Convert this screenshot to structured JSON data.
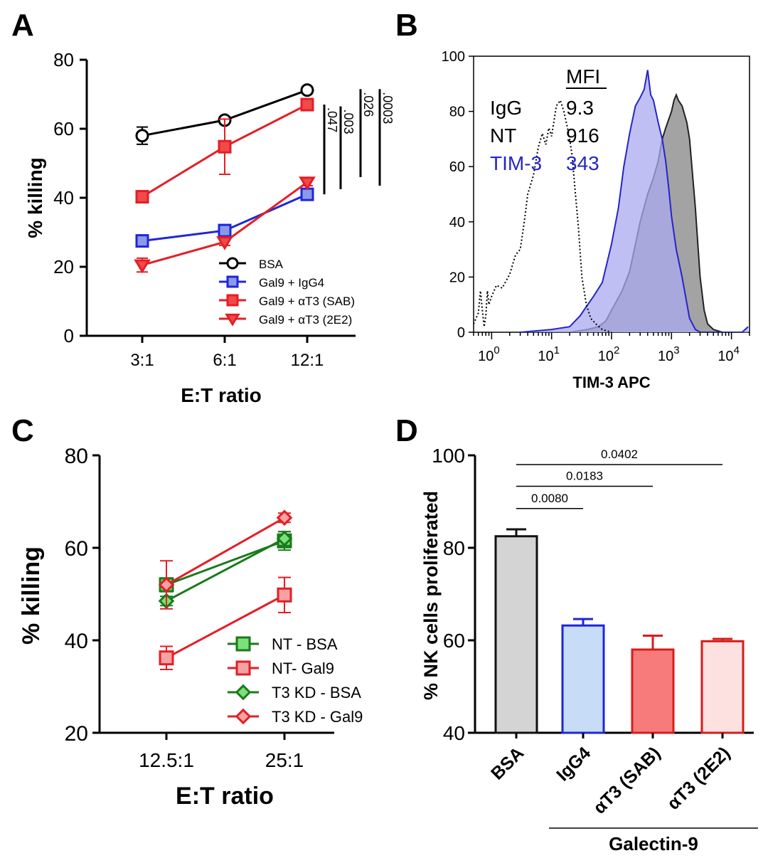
{
  "chart_data": [
    {
      "panel": "A",
      "type": "line",
      "xlabel": "E:T ratio",
      "ylabel": "% killing",
      "categories": [
        "3:1",
        "6:1",
        "12:1"
      ],
      "ylim": [
        0,
        80
      ],
      "yticks": [
        0,
        20,
        40,
        60,
        80
      ],
      "series": [
        {
          "name": "BSA",
          "values": [
            58,
            62.5,
            71.2
          ],
          "err": [
            2.5,
            1,
            1
          ],
          "marker": "circle",
          "color": "#000000",
          "fill": "#ffffff"
        },
        {
          "name": "Gal9 + IgG4",
          "values": [
            27.5,
            30.5,
            41
          ],
          "err": [
            1,
            1,
            1.5
          ],
          "marker": "square",
          "color": "#1f26d9",
          "fill": "#8a9ae8"
        },
        {
          "name": "Gal9 + αT3 (SAB)",
          "values": [
            40.3,
            54.8,
            67
          ],
          "err": [
            1,
            8,
            1
          ],
          "marker": "square",
          "color": "#e41e26",
          "fill": "#f04a4a"
        },
        {
          "name": "Gal9 + αT3 (2E2)",
          "values": [
            20.5,
            27.2,
            44.5
          ],
          "err": [
            2,
            1,
            1
          ],
          "marker": "triangle-down",
          "color": "#e41e26",
          "fill": "#f04a4a"
        }
      ],
      "pvalues": [
        {
          "label": ".047",
          "from": 41,
          "to": 67
        },
        {
          "label": ".003",
          "from": 42.5,
          "to": 66.5
        },
        {
          "label": ".026",
          "from": 46,
          "to": 71.5
        },
        {
          "label": ".0003",
          "from": 43.5,
          "to": 71.5
        }
      ]
    },
    {
      "panel": "B",
      "type": "area",
      "xlabel": "TIM-3 APC",
      "ylabel": "",
      "xscale": "log",
      "xlim": [
        0.5,
        20000
      ],
      "ylim": [
        0,
        100
      ],
      "yticks": [
        0,
        20,
        40,
        60,
        80,
        100
      ],
      "xticks": [
        {
          "exp": 0,
          "label_base": "10",
          "label_sup": "0"
        },
        {
          "exp": 1,
          "label_base": "10",
          "label_sup": "1"
        },
        {
          "exp": 2,
          "label_base": "10",
          "label_sup": "2"
        },
        {
          "exp": 3,
          "label_base": "10",
          "label_sup": "3"
        },
        {
          "exp": 4,
          "label_base": "10",
          "label_sup": "4"
        }
      ],
      "mfi_header": "MFI",
      "series": [
        {
          "name": "IgG",
          "mfi": "9.3",
          "color": "#000000",
          "style": "dotted",
          "points": [
            [
              0.5,
              3
            ],
            [
              0.6,
              7
            ],
            [
              0.65,
              15
            ],
            [
              0.7,
              8
            ],
            [
              0.75,
              2
            ],
            [
              0.8,
              6
            ],
            [
              0.85,
              15
            ],
            [
              0.9,
              10
            ],
            [
              1,
              13
            ],
            [
              1.2,
              17
            ],
            [
              1.5,
              16
            ],
            [
              2,
              21
            ],
            [
              2.5,
              28
            ],
            [
              3,
              30
            ],
            [
              3.5,
              40
            ],
            [
              4,
              50
            ],
            [
              5,
              57
            ],
            [
              6,
              67
            ],
            [
              7,
              72
            ],
            [
              8,
              68
            ],
            [
              9,
              74
            ],
            [
              10,
              71
            ],
            [
              12,
              82
            ],
            [
              14,
              84
            ],
            [
              16,
              80
            ],
            [
              18,
              75
            ],
            [
              20,
              70
            ],
            [
              22,
              64
            ],
            [
              25,
              50
            ],
            [
              28,
              38
            ],
            [
              32,
              20
            ],
            [
              38,
              10
            ],
            [
              45,
              5
            ],
            [
              55,
              3
            ],
            [
              70,
              1
            ],
            [
              100,
              0
            ]
          ]
        },
        {
          "name": "NT",
          "mfi": "916",
          "color": "#222222",
          "fill": "#9e9e9e",
          "style": "solid",
          "points": [
            [
              20,
              0
            ],
            [
              40,
              1
            ],
            [
              60,
              2
            ],
            [
              80,
              4
            ],
            [
              100,
              8
            ],
            [
              150,
              15
            ],
            [
              200,
              22
            ],
            [
              300,
              40
            ],
            [
              400,
              50
            ],
            [
              500,
              56
            ],
            [
              600,
              62
            ],
            [
              700,
              70
            ],
            [
              800,
              74
            ],
            [
              1000,
              80
            ],
            [
              1100,
              84
            ],
            [
              1200,
              86
            ],
            [
              1300,
              84
            ],
            [
              1500,
              82
            ],
            [
              1800,
              76
            ],
            [
              2000,
              70
            ],
            [
              2500,
              45
            ],
            [
              3000,
              20
            ],
            [
              3500,
              8
            ],
            [
              4000,
              3
            ],
            [
              5000,
              1
            ],
            [
              7000,
              0
            ]
          ]
        },
        {
          "name": "TIM-3",
          "mfi": "343",
          "color": "#2525c8",
          "fill": "#a9a9ef",
          "style": "solid",
          "points": [
            [
              3,
              0
            ],
            [
              10,
              1
            ],
            [
              20,
              2
            ],
            [
              30,
              6
            ],
            [
              40,
              10
            ],
            [
              50,
              13
            ],
            [
              70,
              18
            ],
            [
              100,
              32
            ],
            [
              130,
              45
            ],
            [
              160,
              60
            ],
            [
              200,
              72
            ],
            [
              250,
              82
            ],
            [
              300,
              85
            ],
            [
              350,
              88
            ],
            [
              400,
              95
            ],
            [
              450,
              86
            ],
            [
              500,
              84
            ],
            [
              600,
              76
            ],
            [
              700,
              70
            ],
            [
              800,
              62
            ],
            [
              900,
              52
            ],
            [
              1000,
              42
            ],
            [
              1200,
              30
            ],
            [
              1500,
              20
            ],
            [
              2000,
              5
            ],
            [
              2500,
              1
            ],
            [
              3000,
              0
            ],
            [
              15000,
              0
            ],
            [
              19000,
              2
            ]
          ]
        }
      ]
    },
    {
      "panel": "C",
      "type": "line",
      "xlabel": "E:T ratio",
      "ylabel": "% killing",
      "categories": [
        "12.5:1",
        "25:1"
      ],
      "ylim": [
        20,
        80
      ],
      "yticks": [
        20,
        40,
        60,
        80
      ],
      "series": [
        {
          "name": "NT - BSA",
          "values": [
            52,
            61.5
          ],
          "err": [
            1.5,
            2
          ],
          "marker": "square",
          "color": "#1a7a1a",
          "fill": "#7be07b"
        },
        {
          "name": "NT- Gal9",
          "values": [
            36.2,
            49.8
          ],
          "err": [
            2.5,
            3.8
          ],
          "marker": "square",
          "color": "#e41e26",
          "fill": "#f4a2a2"
        },
        {
          "name": "T3 KD - BSA",
          "values": [
            48.5,
            62
          ],
          "err": [
            1,
            1.5
          ],
          "marker": "diamond",
          "color": "#1a7a1a",
          "fill": "#7be07b"
        },
        {
          "name": "T3 KD - Gal9",
          "values": [
            52,
            66.5
          ],
          "err": [
            5.2,
            1
          ],
          "marker": "diamond",
          "color": "#e41e26",
          "fill": "#f4a2a2"
        }
      ]
    },
    {
      "panel": "D",
      "type": "bar",
      "xlabel": "Galectin-9",
      "ylabel": "% NK cells proliferated",
      "categories": [
        "BSA",
        "IgG4",
        "αT3 (SAB)",
        "αT3 (2E2)"
      ],
      "ylim": [
        40,
        100
      ],
      "yticks": [
        40,
        60,
        80,
        100
      ],
      "values": [
        82.5,
        63.2,
        58,
        59.8
      ],
      "err": [
        1.5,
        1.4,
        3,
        0.5
      ],
      "colors": [
        {
          "fill": "#d4d4d4",
          "stroke": "#111111"
        },
        {
          "fill": "#c6dcf7",
          "stroke": "#1f26d9"
        },
        {
          "fill": "#f77b7b",
          "stroke": "#d81c1c"
        },
        {
          "fill": "#fde1e1",
          "stroke": "#d81c1c"
        }
      ],
      "pvalues": [
        {
          "label": "0.0080",
          "from": 0,
          "to": 1,
          "y": 88.5
        },
        {
          "label": "0.0183",
          "from": 0,
          "to": 2,
          "y": 93.3
        },
        {
          "label": "0.0402",
          "from": 0,
          "to": 3,
          "y": 98
        }
      ]
    }
  ],
  "panel_letters": {
    "A": "A",
    "B": "B",
    "C": "C",
    "D": "D"
  }
}
